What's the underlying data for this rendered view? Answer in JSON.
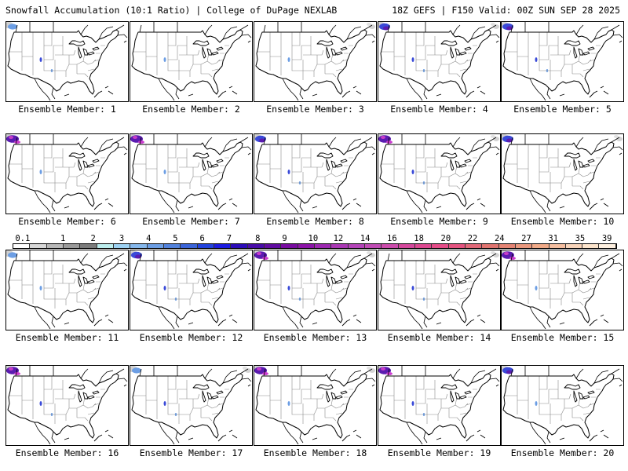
{
  "header": {
    "title": "Snowfall Accumulation (10:1 Ratio) | College of DuPage NEXLAB",
    "run": "18Z GEFS | F150 Valid: 00Z SUN SEP 28 2025"
  },
  "legend": {
    "labels": [
      "0.1",
      "1",
      "2",
      "3",
      "4",
      "5",
      "6",
      "7",
      "8",
      "9",
      "10",
      "12",
      "14",
      "16",
      "18",
      "20",
      "22",
      "24",
      "27",
      "31",
      "35",
      "39"
    ],
    "colors": [
      "#ffffff",
      "#d8d8d8",
      "#b8b8b8",
      "#9a9a9a",
      "#7c7c7c",
      "#bdeeee",
      "#9ed2f2",
      "#86b8ec",
      "#6c9ee4",
      "#5282dc",
      "#3a64d8",
      "#2242dc",
      "#1c1ce0",
      "#2c0cb8",
      "#480ca8",
      "#600ca0",
      "#780ca0",
      "#8c14a8",
      "#9c28b0",
      "#aa38b4",
      "#b444b8",
      "#c04cb4",
      "#cc4cac",
      "#d4489c",
      "#dc4890",
      "#e44c88",
      "#e45480",
      "#e06878",
      "#e07470",
      "#e48474",
      "#ea987e",
      "#f0aa88",
      "#f4bea0",
      "#f8d4ba",
      "#fce4cc",
      "#fef0e0"
    ]
  },
  "panels": [
    {
      "caption": "Ensemble Member: 1",
      "snow": [
        {
          "r": "nw",
          "l": 1
        },
        {
          "r": "rockies",
          "l": 1
        }
      ]
    },
    {
      "caption": "Ensemble Member: 2",
      "snow": [
        {
          "r": "rockies",
          "l": 0
        }
      ]
    },
    {
      "caption": "Ensemble Member: 3",
      "snow": [
        {
          "r": "rockies",
          "l": 0
        },
        {
          "r": "ne",
          "l": 0
        }
      ]
    },
    {
      "caption": "Ensemble Member: 4",
      "snow": [
        {
          "r": "nw",
          "l": 2
        },
        {
          "r": "rockies",
          "l": 1
        },
        {
          "r": "ne",
          "l": 0
        }
      ]
    },
    {
      "caption": "Ensemble Member: 5",
      "snow": [
        {
          "r": "nw",
          "l": 2
        },
        {
          "r": "rockies",
          "l": 1
        }
      ]
    },
    {
      "caption": "Ensemble Member: 6",
      "snow": [
        {
          "r": "nw",
          "l": 3
        },
        {
          "r": "rockies",
          "l": 0
        }
      ]
    },
    {
      "caption": "Ensemble Member: 7",
      "snow": [
        {
          "r": "nw",
          "l": 3
        },
        {
          "r": "rockies",
          "l": 0
        }
      ]
    },
    {
      "caption": "Ensemble Member: 8",
      "snow": [
        {
          "r": "nw",
          "l": 2
        },
        {
          "r": "rockies",
          "l": 1
        }
      ]
    },
    {
      "caption": "Ensemble Member: 9",
      "snow": [
        {
          "r": "nw",
          "l": 3
        },
        {
          "r": "rockies",
          "l": 1
        },
        {
          "r": "ne",
          "l": 0
        }
      ]
    },
    {
      "caption": "Ensemble Member: 10",
      "snow": [
        {
          "r": "nw",
          "l": 2
        },
        {
          "r": "ne",
          "l": 0
        }
      ]
    },
    {
      "caption": "Ensemble Member: 11",
      "snow": [
        {
          "r": "nw",
          "l": 1
        },
        {
          "r": "rockies",
          "l": 0
        }
      ]
    },
    {
      "caption": "Ensemble Member: 12",
      "snow": [
        {
          "r": "nw",
          "l": 2
        },
        {
          "r": "rockies",
          "l": 1
        }
      ]
    },
    {
      "caption": "Ensemble Member: 13",
      "snow": [
        {
          "r": "nw",
          "l": 3
        },
        {
          "r": "rockies",
          "l": 1
        },
        {
          "r": "ne",
          "l": 0
        }
      ]
    },
    {
      "caption": "Ensemble Member: 14",
      "snow": [
        {
          "r": "rockies",
          "l": 1
        },
        {
          "r": "ne",
          "l": 0
        }
      ]
    },
    {
      "caption": "Ensemble Member: 15",
      "snow": [
        {
          "r": "nw",
          "l": 3
        },
        {
          "r": "rockies",
          "l": 0
        }
      ]
    },
    {
      "caption": "Ensemble Member: 16",
      "snow": [
        {
          "r": "nw",
          "l": 3
        },
        {
          "r": "rockies",
          "l": 1
        }
      ]
    },
    {
      "caption": "Ensemble Member: 17",
      "snow": [
        {
          "r": "nw",
          "l": 1
        },
        {
          "r": "rockies",
          "l": 1
        },
        {
          "r": "ne",
          "l": 0
        }
      ]
    },
    {
      "caption": "Ensemble Member: 18",
      "snow": [
        {
          "r": "nw",
          "l": 3
        },
        {
          "r": "rockies",
          "l": 0
        },
        {
          "r": "ne",
          "l": 0
        }
      ]
    },
    {
      "caption": "Ensemble Member: 19",
      "snow": [
        {
          "r": "nw",
          "l": 3
        },
        {
          "r": "rockies",
          "l": 1
        }
      ]
    },
    {
      "caption": "Ensemble Member: 20",
      "snow": [
        {
          "r": "nw",
          "l": 2
        },
        {
          "r": "rockies",
          "l": 0
        }
      ]
    }
  ]
}
